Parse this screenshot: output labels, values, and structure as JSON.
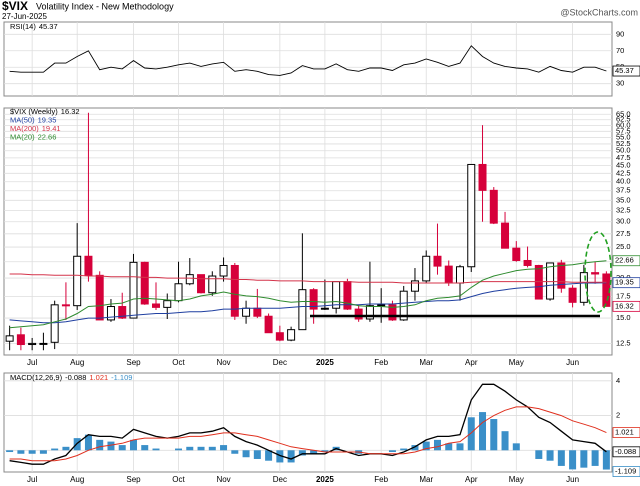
{
  "header": {
    "symbol": "$VIX",
    "name": "Volatility Index - New Methodology",
    "date": "27-Jun-2025",
    "source": "@StockCharts.com"
  },
  "chart_data": [
    {
      "type": "line",
      "ylim": [
        15,
        105
      ],
      "yticks": [
        30,
        50,
        70,
        90
      ],
      "grid": true,
      "series": [
        {
          "name": "RSI(14)",
          "color": "#000000",
          "values": [
            45,
            44,
            44,
            44,
            55,
            55,
            63,
            70,
            47,
            50,
            48,
            58,
            49,
            48,
            50,
            53,
            55,
            51,
            54,
            56,
            45,
            47,
            45,
            41,
            40,
            43,
            52,
            48,
            48,
            54,
            47,
            45,
            49,
            49,
            46,
            53,
            55,
            60,
            56,
            51,
            55,
            76,
            63,
            55,
            51,
            49,
            48,
            44,
            51,
            46,
            44,
            50,
            50,
            45.37
          ]
        }
      ]
    },
    {
      "type": "candlestick",
      "log_scale": true,
      "ylim": [
        11.5,
        68
      ],
      "grid": true,
      "up_color": "#000000",
      "down_color": "#d6003a",
      "categories": [
        null,
        null,
        "Jul",
        null,
        null,
        null,
        "Aug",
        null,
        null,
        null,
        null,
        "Sep",
        null,
        null,
        null,
        "Oct",
        null,
        null,
        null,
        "Nov",
        null,
        null,
        null,
        null,
        "Dec",
        null,
        null,
        null,
        "2025",
        null,
        null,
        null,
        null,
        "Feb",
        null,
        null,
        null,
        "Mar",
        null,
        null,
        null,
        "Apr",
        null,
        null,
        null,
        "May",
        null,
        null,
        null,
        null,
        "Jun",
        null,
        null,
        null
      ],
      "yticks": [
        12.5,
        {
          "value": 15,
          "label": "15.0"
        },
        17.5,
        {
          "value": 20,
          "label": "20.0"
        },
        22.5,
        {
          "value": 25,
          "label": "25.0"
        },
        27.5,
        {
          "value": 30,
          "label": "30.0"
        },
        32.5,
        {
          "value": 35,
          "label": "35.0"
        },
        37.5,
        {
          "value": 40,
          "label": "40.0"
        },
        42.5,
        {
          "value": 45,
          "label": "45.0"
        },
        47.5,
        {
          "value": 50,
          "label": "50.0"
        },
        52.5,
        {
          "value": 55,
          "label": "55.0"
        },
        57.5,
        {
          "value": 60,
          "label": "60.0"
        },
        62.5,
        {
          "value": 65,
          "label": "65.0"
        }
      ],
      "series": [
        {
          "name": "$VIX (Weekly)",
          "open": [
            12.7,
            13.3,
            12.4,
            12.5,
            12.6,
            16.5,
            16.4,
            23.4,
            20.4,
            14.8,
            16.3,
            15.0,
            22.4,
            16.6,
            16.2,
            17.0,
            19.2,
            20.5,
            18.0,
            20.3,
            21.9,
            15.2,
            16.1,
            15.2,
            13.5,
            12.8,
            13.8,
            18.4,
            16.0,
            16.1,
            19.5,
            16.0,
            14.9,
            16.4,
            16.5,
            14.8,
            18.2,
            19.6,
            23.4,
            21.8,
            19.3,
            21.7,
            45.3,
            37.6,
            29.7,
            24.8,
            22.7,
            21.9,
            17.2,
            22.3,
            18.6,
            16.8,
            20.8,
            20.6
          ],
          "high": [
            14.2,
            14.0,
            13.0,
            13.5,
            17.0,
            19.4,
            29.7,
            65.7,
            21.0,
            17.2,
            18.0,
            23.8,
            22.5,
            19.4,
            17.9,
            22.5,
            23.1,
            20.5,
            21.0,
            23.2,
            22.3,
            17.0,
            18.5,
            15.5,
            14.2,
            14.1,
            27.6,
            18.6,
            19.8,
            19.5,
            19.9,
            16.5,
            22.5,
            18.6,
            17.0,
            18.9,
            21.5,
            24.4,
            29.6,
            22.7,
            22.0,
            45.3,
            60.1,
            38.5,
            32.2,
            26.1,
            25.1,
            22.0,
            22.3,
            22.8,
            19.0,
            22.0,
            22.5,
            21.0
          ],
          "low": [
            11.9,
            11.9,
            11.9,
            11.9,
            12.0,
            14.8,
            15.9,
            19.5,
            14.8,
            14.6,
            14.9,
            15.0,
            16.5,
            15.9,
            14.9,
            16.8,
            19.0,
            17.9,
            17.6,
            19.5,
            14.8,
            14.4,
            15.0,
            13.5,
            12.7,
            12.7,
            13.8,
            14.4,
            15.9,
            15.5,
            15.9,
            14.6,
            14.6,
            14.5,
            14.7,
            14.7,
            17.0,
            19.3,
            20.5,
            18.9,
            17.0,
            20.9,
            30.0,
            29.5,
            24.8,
            22.5,
            21.6,
            17.2,
            17.0,
            18.0,
            16.2,
            16.4,
            19.2,
            16.3
          ],
          "close": [
            13.2,
            12.4,
            12.5,
            12.5,
            16.5,
            16.4,
            23.4,
            20.4,
            14.8,
            16.3,
            15.0,
            22.4,
            16.6,
            16.2,
            17.0,
            19.2,
            20.5,
            18.0,
            20.3,
            21.9,
            15.2,
            16.1,
            15.2,
            13.5,
            12.8,
            13.8,
            18.4,
            16.0,
            16.1,
            19.5,
            16.0,
            14.9,
            16.4,
            16.5,
            14.8,
            18.2,
            19.6,
            23.4,
            21.8,
            19.3,
            21.7,
            45.3,
            37.6,
            29.7,
            24.8,
            22.7,
            21.9,
            17.2,
            22.3,
            18.6,
            16.8,
            20.8,
            20.6,
            16.32
          ]
        },
        {
          "name": "MA(50)",
          "color": "#1f3fa0",
          "values": [
            14.8,
            14.7,
            14.6,
            14.5,
            14.5,
            14.6,
            14.8,
            15.0,
            15.0,
            15.1,
            15.2,
            15.3,
            15.4,
            15.5,
            15.5,
            15.6,
            15.7,
            15.7,
            15.8,
            16.0,
            16.0,
            16.1,
            16.1,
            16.1,
            16.1,
            16.2,
            16.3,
            16.3,
            16.4,
            16.5,
            16.5,
            16.5,
            16.6,
            16.6,
            16.6,
            16.7,
            16.8,
            16.9,
            17.0,
            17.0,
            17.1,
            17.5,
            17.9,
            18.2,
            18.4,
            18.6,
            18.7,
            18.8,
            19.0,
            19.1,
            19.2,
            19.3,
            19.3,
            19.35
          ]
        },
        {
          "name": "MA(200)",
          "color": "#d4334a",
          "values": [
            20.6,
            20.6,
            20.5,
            20.5,
            20.4,
            20.4,
            20.4,
            20.3,
            20.3,
            20.2,
            20.2,
            20.2,
            20.1,
            20.1,
            20.0,
            20.0,
            20.0,
            19.9,
            19.9,
            19.9,
            19.8,
            19.8,
            19.7,
            19.7,
            19.6,
            19.6,
            19.6,
            19.5,
            19.5,
            19.5,
            19.5,
            19.4,
            19.4,
            19.4,
            19.4,
            19.3,
            19.3,
            19.3,
            19.3,
            19.3,
            19.3,
            19.4,
            19.5,
            19.5,
            19.5,
            19.5,
            19.5,
            19.5,
            19.5,
            19.5,
            19.4,
            19.4,
            19.4,
            19.41
          ]
        },
        {
          "name": "MA(20)",
          "color": "#2e8b2e",
          "values": [
            14.0,
            14.1,
            14.2,
            14.3,
            14.6,
            14.9,
            15.5,
            16.3,
            16.4,
            16.6,
            16.7,
            17.2,
            17.3,
            17.2,
            17.1,
            17.0,
            17.2,
            17.6,
            17.8,
            18.1,
            17.8,
            17.6,
            17.5,
            17.3,
            17.0,
            16.8,
            16.9,
            16.9,
            16.8,
            16.9,
            16.7,
            16.4,
            16.3,
            16.3,
            16.2,
            16.3,
            16.5,
            17.0,
            17.3,
            17.4,
            17.6,
            18.7,
            19.7,
            20.3,
            20.7,
            21.1,
            21.3,
            21.4,
            21.7,
            21.9,
            22.0,
            22.3,
            22.5,
            22.66
          ]
        }
      ]
    },
    {
      "type": "macd",
      "ylim": [
        -1.25,
        4.45
      ],
      "yticks": [
        0,
        2,
        4
      ],
      "grid": true,
      "series": [
        {
          "name": "MACD(12,26,9)",
          "color": "#000000",
          "values": [
            -0.6,
            -0.7,
            -0.8,
            -0.8,
            -0.5,
            -0.3,
            0.4,
            0.9,
            0.8,
            0.8,
            0.7,
            1.2,
            1.0,
            0.8,
            0.7,
            0.8,
            1.0,
            1.0,
            1.1,
            1.3,
            0.8,
            0.5,
            0.3,
            0.0,
            -0.3,
            -0.5,
            -0.2,
            -0.2,
            -0.2,
            0.1,
            -0.1,
            -0.3,
            -0.2,
            -0.2,
            -0.3,
            -0.1,
            0.2,
            0.6,
            0.8,
            0.8,
            0.9,
            2.9,
            3.8,
            3.8,
            3.4,
            2.9,
            2.5,
            1.9,
            1.6,
            1.1,
            0.6,
            0.5,
            0.4,
            -0.088
          ]
        },
        {
          "color": "#e0301e",
          "values": [
            -0.5,
            -0.5,
            -0.6,
            -0.6,
            -0.6,
            -0.5,
            -0.3,
            0.0,
            0.2,
            0.3,
            0.4,
            0.6,
            0.7,
            0.7,
            0.7,
            0.7,
            0.8,
            0.8,
            0.9,
            1.0,
            1.0,
            0.9,
            0.8,
            0.6,
            0.4,
            0.2,
            0.1,
            0.0,
            -0.1,
            -0.1,
            -0.1,
            -0.1,
            -0.2,
            -0.2,
            -0.2,
            -0.2,
            -0.1,
            0.1,
            0.2,
            0.4,
            0.5,
            1.0,
            1.6,
            2.0,
            2.3,
            2.5,
            2.5,
            2.4,
            2.2,
            2.0,
            1.7,
            1.5,
            1.3,
            1.021
          ]
        },
        {
          "color": "#3a8fc8",
          "values": [
            -0.1,
            -0.2,
            -0.2,
            -0.2,
            0.1,
            0.2,
            0.7,
            0.9,
            0.6,
            0.5,
            0.3,
            0.6,
            0.3,
            0.1,
            0.0,
            0.1,
            0.2,
            0.2,
            0.2,
            0.3,
            -0.2,
            -0.4,
            -0.5,
            -0.6,
            -0.7,
            -0.7,
            -0.3,
            -0.2,
            -0.1,
            0.2,
            0.0,
            -0.2,
            0.0,
            0.0,
            -0.1,
            0.1,
            0.3,
            0.5,
            0.6,
            0.4,
            0.4,
            1.9,
            2.2,
            1.8,
            1.1,
            0.4,
            0.0,
            -0.5,
            -0.6,
            -0.9,
            -1.1,
            -1.0,
            -0.9,
            -1.109
          ]
        }
      ]
    }
  ]
}
